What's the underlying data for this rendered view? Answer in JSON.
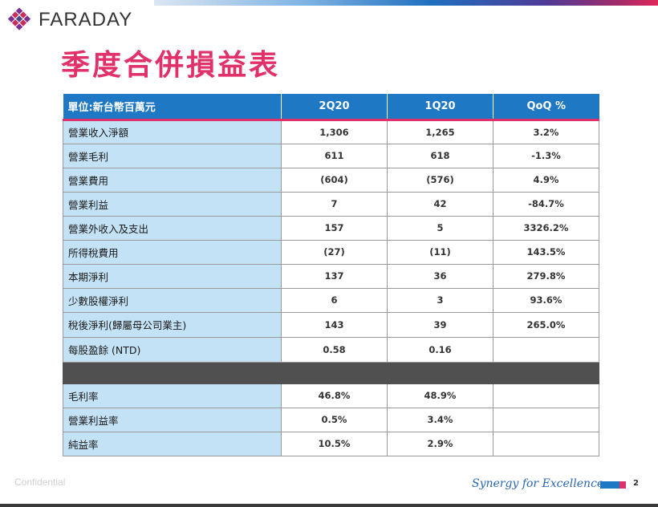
{
  "logo": {
    "text": "FARADAY"
  },
  "title": "季度合併損益表",
  "table": {
    "headers": [
      "單位:新台幣百萬元",
      "2Q20",
      "1Q20",
      "QoQ %"
    ],
    "rows": [
      {
        "label": "營業收入淨額",
        "q2": "1,306",
        "q1": "1,265",
        "qoq": "3.2%"
      },
      {
        "label": "營業毛利",
        "q2": "611",
        "q1": "618",
        "qoq": "-1.3%"
      },
      {
        "label": "營業費用",
        "q2": "(604)",
        "q1": "(576)",
        "qoq": "4.9%"
      },
      {
        "label": "營業利益",
        "q2": "7",
        "q1": "42",
        "qoq": "-84.7%"
      },
      {
        "label": "營業外收入及支出",
        "q2": "157",
        "q1": "5",
        "qoq": "3326.2%"
      },
      {
        "label": "所得稅費用",
        "q2": "(27)",
        "q1": "(11)",
        "qoq": "143.5%"
      },
      {
        "label": "本期淨利",
        "q2": "137",
        "q1": "36",
        "qoq": "279.8%"
      },
      {
        "label": "少數股權淨利",
        "q2": "6",
        "q1": "3",
        "qoq": "93.6%"
      },
      {
        "label": "稅後淨利(歸屬母公司業主)",
        "q2": "143",
        "q1": "39",
        "qoq": "265.0%"
      },
      {
        "label": "每股盈餘 (NTD)",
        "q2": "0.58",
        "q1": "0.16",
        "qoq": ""
      }
    ],
    "ratio_rows": [
      {
        "label": "毛利率",
        "q2": "46.8%",
        "q1": "48.9%",
        "qoq": ""
      },
      {
        "label": "營業利益率",
        "q2": "0.5%",
        "q1": "3.4%",
        "qoq": ""
      },
      {
        "label": "純益率",
        "q2": "10.5%",
        "q1": "2.9%",
        "qoq": ""
      }
    ]
  },
  "footer": {
    "confidential": "Confidential",
    "tagline": "Synergy for Excellence",
    "page_number": "2"
  },
  "colors": {
    "title": "#e0316a",
    "header_bg": "#1f78c4",
    "label_bg": "#c4e2f5",
    "separator": "#505050"
  }
}
